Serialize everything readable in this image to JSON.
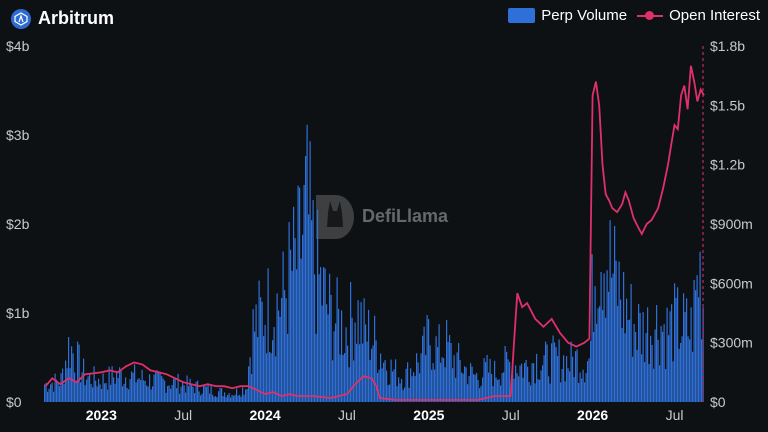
{
  "header": {
    "title": "Arbitrum"
  },
  "legend": {
    "volume": "Perp Volume",
    "oi": "Open Interest"
  },
  "watermark": "DefiLlama",
  "colors": {
    "volume": "#2f70d8",
    "oi": "#e0306a",
    "background": "#0e1114"
  },
  "chart_data": {
    "type": "bar",
    "title": "Arbitrum",
    "y_left": {
      "ticks": [
        "$0",
        "$1b",
        "$2b",
        "$3b",
        "$4b"
      ],
      "values": [
        0,
        1,
        2,
        3,
        4
      ],
      "unit": "billion USD"
    },
    "y_right": {
      "ticks": [
        "$0",
        "$300m",
        "$600m",
        "$900m",
        "$1.2b",
        "$1.5b",
        "$1.8b"
      ],
      "values": [
        0,
        0.3,
        0.6,
        0.9,
        1.2,
        1.5,
        1.8
      ],
      "unit": "billion USD"
    },
    "x_ticks": [
      {
        "label": "2023",
        "t": 2023.0,
        "year": true
      },
      {
        "label": "Jul",
        "t": 2023.5,
        "year": false
      },
      {
        "label": "2024",
        "t": 2024.0,
        "year": true
      },
      {
        "label": "Jul",
        "t": 2024.5,
        "year": false
      },
      {
        "label": "2025",
        "t": 2025.0,
        "year": true
      },
      {
        "label": "Jul",
        "t": 2025.5,
        "year": false
      },
      {
        "label": "2026",
        "t": 2026.0,
        "year": true
      },
      {
        "label": "Jul",
        "t": 2026.5,
        "year": false
      }
    ],
    "xlim": [
      2022.65,
      2026.68
    ],
    "grid": false,
    "legend_position": "top-right",
    "series": [
      {
        "name": "Perp Volume",
        "axis": "left",
        "type": "bar",
        "points": [
          [
            2022.66,
            0.25
          ],
          [
            2022.75,
            0.3
          ],
          [
            2022.8,
            0.8
          ],
          [
            2022.9,
            0.35
          ],
          [
            2023.0,
            0.3
          ],
          [
            2023.1,
            0.38
          ],
          [
            2023.2,
            0.35
          ],
          [
            2023.3,
            0.3
          ],
          [
            2023.4,
            0.28
          ],
          [
            2023.5,
            0.25
          ],
          [
            2023.6,
            0.2
          ],
          [
            2023.7,
            0.15
          ],
          [
            2023.8,
            0.12
          ],
          [
            2023.88,
            0.2
          ],
          [
            2023.92,
            1.0
          ],
          [
            2024.0,
            1.3
          ],
          [
            2024.1,
            1.4
          ],
          [
            2024.15,
            1.8
          ],
          [
            2024.2,
            2.0
          ],
          [
            2024.25,
            2.7
          ],
          [
            2024.3,
            1.9
          ],
          [
            2024.35,
            1.5
          ],
          [
            2024.4,
            1.2
          ],
          [
            2024.45,
            1.1
          ],
          [
            2024.5,
            1.0
          ],
          [
            2024.55,
            1.3
          ],
          [
            2024.6,
            1.0
          ],
          [
            2024.65,
            0.9
          ],
          [
            2024.7,
            0.7
          ],
          [
            2024.75,
            0.5
          ],
          [
            2024.8,
            0.4
          ],
          [
            2024.85,
            0.35
          ],
          [
            2024.9,
            0.5
          ],
          [
            2024.95,
            0.6
          ],
          [
            2025.0,
            0.9
          ],
          [
            2025.05,
            0.7
          ],
          [
            2025.1,
            0.8
          ],
          [
            2025.15,
            0.6
          ],
          [
            2025.2,
            0.5
          ],
          [
            2025.25,
            0.4
          ],
          [
            2025.3,
            0.35
          ],
          [
            2025.35,
            0.45
          ],
          [
            2025.4,
            0.4
          ],
          [
            2025.45,
            0.5
          ],
          [
            2025.5,
            0.55
          ],
          [
            2025.55,
            0.5
          ],
          [
            2025.6,
            0.5
          ],
          [
            2025.65,
            0.6
          ],
          [
            2025.7,
            0.55
          ],
          [
            2025.75,
            0.6
          ],
          [
            2025.8,
            0.6
          ],
          [
            2025.85,
            0.55
          ],
          [
            2025.9,
            0.6
          ],
          [
            2025.95,
            0.55
          ],
          [
            2025.98,
            0.6
          ],
          [
            2026.0,
            1.8
          ],
          [
            2026.03,
            2.2
          ],
          [
            2026.06,
            2.3
          ],
          [
            2026.1,
            1.9
          ],
          [
            2026.15,
            1.6
          ],
          [
            2026.2,
            1.3
          ],
          [
            2026.25,
            1.1
          ],
          [
            2026.3,
            1.0
          ],
          [
            2026.35,
            1.05
          ],
          [
            2026.4,
            1.1
          ],
          [
            2026.45,
            1.0
          ],
          [
            2026.5,
            1.1
          ],
          [
            2026.55,
            1.05
          ],
          [
            2026.6,
            1.0
          ],
          [
            2026.65,
            1.9
          ],
          [
            2026.68,
            1.2
          ]
        ]
      },
      {
        "name": "Open Interest",
        "axis": "right",
        "type": "line",
        "points": [
          [
            2022.66,
            0.08
          ],
          [
            2022.7,
            0.12
          ],
          [
            2022.75,
            0.09
          ],
          [
            2022.8,
            0.12
          ],
          [
            2022.85,
            0.1
          ],
          [
            2022.9,
            0.14
          ],
          [
            2023.0,
            0.15
          ],
          [
            2023.05,
            0.16
          ],
          [
            2023.1,
            0.15
          ],
          [
            2023.15,
            0.18
          ],
          [
            2023.2,
            0.2
          ],
          [
            2023.25,
            0.19
          ],
          [
            2023.3,
            0.16
          ],
          [
            2023.35,
            0.15
          ],
          [
            2023.4,
            0.14
          ],
          [
            2023.45,
            0.12
          ],
          [
            2023.5,
            0.1
          ],
          [
            2023.55,
            0.09
          ],
          [
            2023.6,
            0.08
          ],
          [
            2023.65,
            0.09
          ],
          [
            2023.7,
            0.08
          ],
          [
            2023.75,
            0.08
          ],
          [
            2023.8,
            0.07
          ],
          [
            2023.85,
            0.08
          ],
          [
            2023.9,
            0.08
          ],
          [
            2023.95,
            0.06
          ],
          [
            2024.0,
            0.04
          ],
          [
            2024.05,
            0.05
          ],
          [
            2024.1,
            0.03
          ],
          [
            2024.15,
            0.04
          ],
          [
            2024.2,
            0.03
          ],
          [
            2024.3,
            0.03
          ],
          [
            2024.4,
            0.02
          ],
          [
            2024.5,
            0.04
          ],
          [
            2024.55,
            0.09
          ],
          [
            2024.6,
            0.13
          ],
          [
            2024.65,
            0.12
          ],
          [
            2024.68,
            0.08
          ],
          [
            2024.7,
            0.02
          ],
          [
            2024.8,
            0.01
          ],
          [
            2024.9,
            0.01
          ],
          [
            2025.0,
            0.01
          ],
          [
            2025.1,
            0.01
          ],
          [
            2025.2,
            0.01
          ],
          [
            2025.3,
            0.01
          ],
          [
            2025.35,
            0.02
          ],
          [
            2025.4,
            0.03
          ],
          [
            2025.45,
            0.03
          ],
          [
            2025.5,
            0.03
          ],
          [
            2025.52,
            0.3
          ],
          [
            2025.54,
            0.55
          ],
          [
            2025.57,
            0.48
          ],
          [
            2025.6,
            0.5
          ],
          [
            2025.65,
            0.42
          ],
          [
            2025.7,
            0.38
          ],
          [
            2025.75,
            0.42
          ],
          [
            2025.8,
            0.35
          ],
          [
            2025.85,
            0.3
          ],
          [
            2025.9,
            0.28
          ],
          [
            2025.95,
            0.3
          ],
          [
            2025.98,
            0.32
          ],
          [
            2026.0,
            1.55
          ],
          [
            2026.02,
            1.62
          ],
          [
            2026.04,
            1.5
          ],
          [
            2026.06,
            1.2
          ],
          [
            2026.08,
            1.05
          ],
          [
            2026.1,
            1.02
          ],
          [
            2026.12,
            0.98
          ],
          [
            2026.15,
            0.96
          ],
          [
            2026.18,
            1.0
          ],
          [
            2026.2,
            1.06
          ],
          [
            2026.22,
            1.02
          ],
          [
            2026.25,
            0.93
          ],
          [
            2026.28,
            0.88
          ],
          [
            2026.3,
            0.85
          ],
          [
            2026.33,
            0.9
          ],
          [
            2026.36,
            0.92
          ],
          [
            2026.4,
            0.98
          ],
          [
            2026.43,
            1.08
          ],
          [
            2026.46,
            1.2
          ],
          [
            2026.48,
            1.3
          ],
          [
            2026.5,
            1.4
          ],
          [
            2026.52,
            1.38
          ],
          [
            2026.54,
            1.55
          ],
          [
            2026.56,
            1.6
          ],
          [
            2026.58,
            1.48
          ],
          [
            2026.6,
            1.7
          ],
          [
            2026.62,
            1.62
          ],
          [
            2026.64,
            1.52
          ],
          [
            2026.66,
            1.58
          ],
          [
            2026.68,
            1.55
          ]
        ]
      }
    ]
  }
}
